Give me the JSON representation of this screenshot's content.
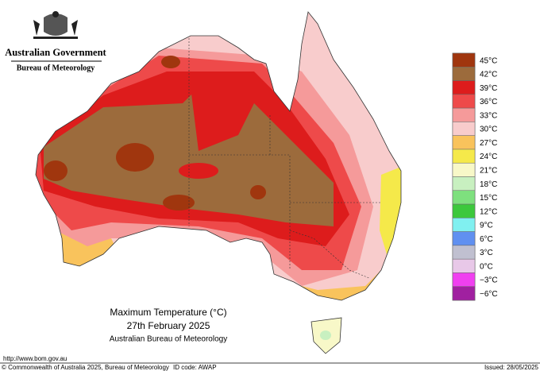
{
  "header": {
    "government": "Australian Government",
    "agency": "Bureau of Meteorology"
  },
  "legend": [
    {
      "label": "45°C",
      "color": "#a0360e"
    },
    {
      "label": "42°C",
      "color": "#9c6b3c"
    },
    {
      "label": "39°C",
      "color": "#dd1c1c"
    },
    {
      "label": "36°C",
      "color": "#ee4a4a"
    },
    {
      "label": "33°C",
      "color": "#f59a9a"
    },
    {
      "label": "30°C",
      "color": "#f8cccc"
    },
    {
      "label": "27°C",
      "color": "#f9c35c"
    },
    {
      "label": "24°C",
      "color": "#f5e94a"
    },
    {
      "label": "21°C",
      "color": "#f8f8c8"
    },
    {
      "label": "18°C",
      "color": "#c8f0c0"
    },
    {
      "label": "15°C",
      "color": "#7ee07e"
    },
    {
      "label": "12°C",
      "color": "#3cc83c"
    },
    {
      "label": "9°C",
      "color": "#80f0f0"
    },
    {
      "label": "6°C",
      "color": "#6090f0"
    },
    {
      "label": "3°C",
      "color": "#c0c0d0"
    },
    {
      "label": "0°C",
      "color": "#e8c8e8"
    },
    {
      "label": "−3°C",
      "color": "#f040f0"
    },
    {
      "label": "−6°C",
      "color": "#a020a0"
    }
  ],
  "title": {
    "line1": "Maximum Temperature (°C)",
    "line2": "27th February 2025",
    "line3": "Australian Bureau of Meteorology"
  },
  "footer": {
    "url": "http://www.bom.gov.au",
    "copyright": "© Commonwealth of Australia 2025, Bureau of Meteorology",
    "id_code": "ID code: AWAP",
    "issued": "Issued: 28/05/2025"
  }
}
